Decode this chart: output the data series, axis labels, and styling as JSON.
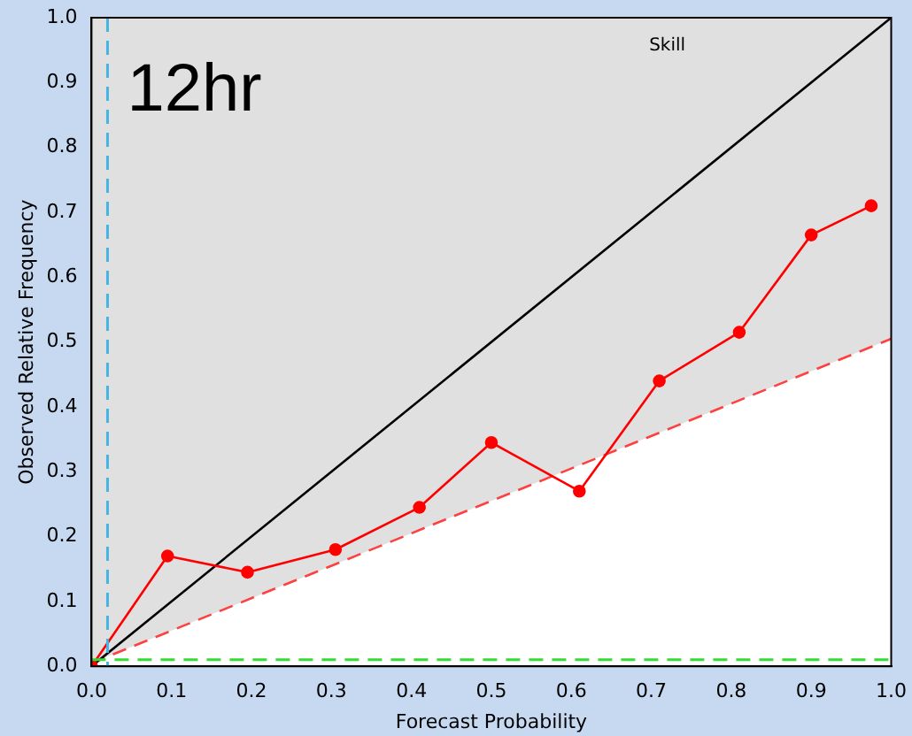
{
  "chart_data": {
    "type": "line",
    "xlabel": "Forecast Probability",
    "ylabel": "Observed Relative Frequency",
    "annotations": [
      "12hr",
      "Skill"
    ],
    "xlim": [
      0,
      1
    ],
    "ylim": [
      0,
      1
    ],
    "xticks": [
      {
        "value": 0,
        "label": "0.0"
      },
      0.1,
      0.2,
      0.3,
      0.4,
      0.5,
      0.6,
      0.7,
      0.8,
      0.9,
      {
        "value": 1,
        "label": "1.0"
      }
    ],
    "yticks": [
      {
        "value": 0,
        "label": "0.0"
      },
      0.1,
      0.2,
      0.3,
      0.4,
      0.5,
      0.6,
      0.7,
      0.8,
      0.9,
      {
        "value": 1,
        "label": "1.0"
      }
    ],
    "series": [
      {
        "color": "#ff4040",
        "line_style": "dashed",
        "marker": "none",
        "x": [
          0,
          1
        ],
        "values": [
          0.005,
          0.505
        ],
        "lower": [
          0.005,
          0.505
        ],
        "upper": [
          1,
          1
        ]
      },
      {
        "color": "#000000",
        "marker": "none",
        "x": [
          0,
          1
        ],
        "values": [
          0,
          1
        ]
      },
      {
        "color": "#ff0000",
        "marker": "circle",
        "x": [
          0,
          0.095,
          0.195,
          0.305,
          0.41,
          0.5,
          0.61,
          0.71,
          0.81,
          0.9,
          0.975
        ],
        "values": [
          0,
          0.17,
          0.145,
          0.18,
          0.245,
          0.345,
          0.27,
          0.44,
          0.515,
          0.665,
          0.71
        ]
      }
    ],
    "ref_lines": [
      {
        "axis": "y",
        "value": 0.01,
        "color": "#33dd33",
        "line_style": "dashed"
      },
      {
        "axis": "x",
        "value": 0.02,
        "color": "#44b4e0",
        "line_style": "dashed"
      }
    ],
    "grid": false,
    "legend": false
  }
}
